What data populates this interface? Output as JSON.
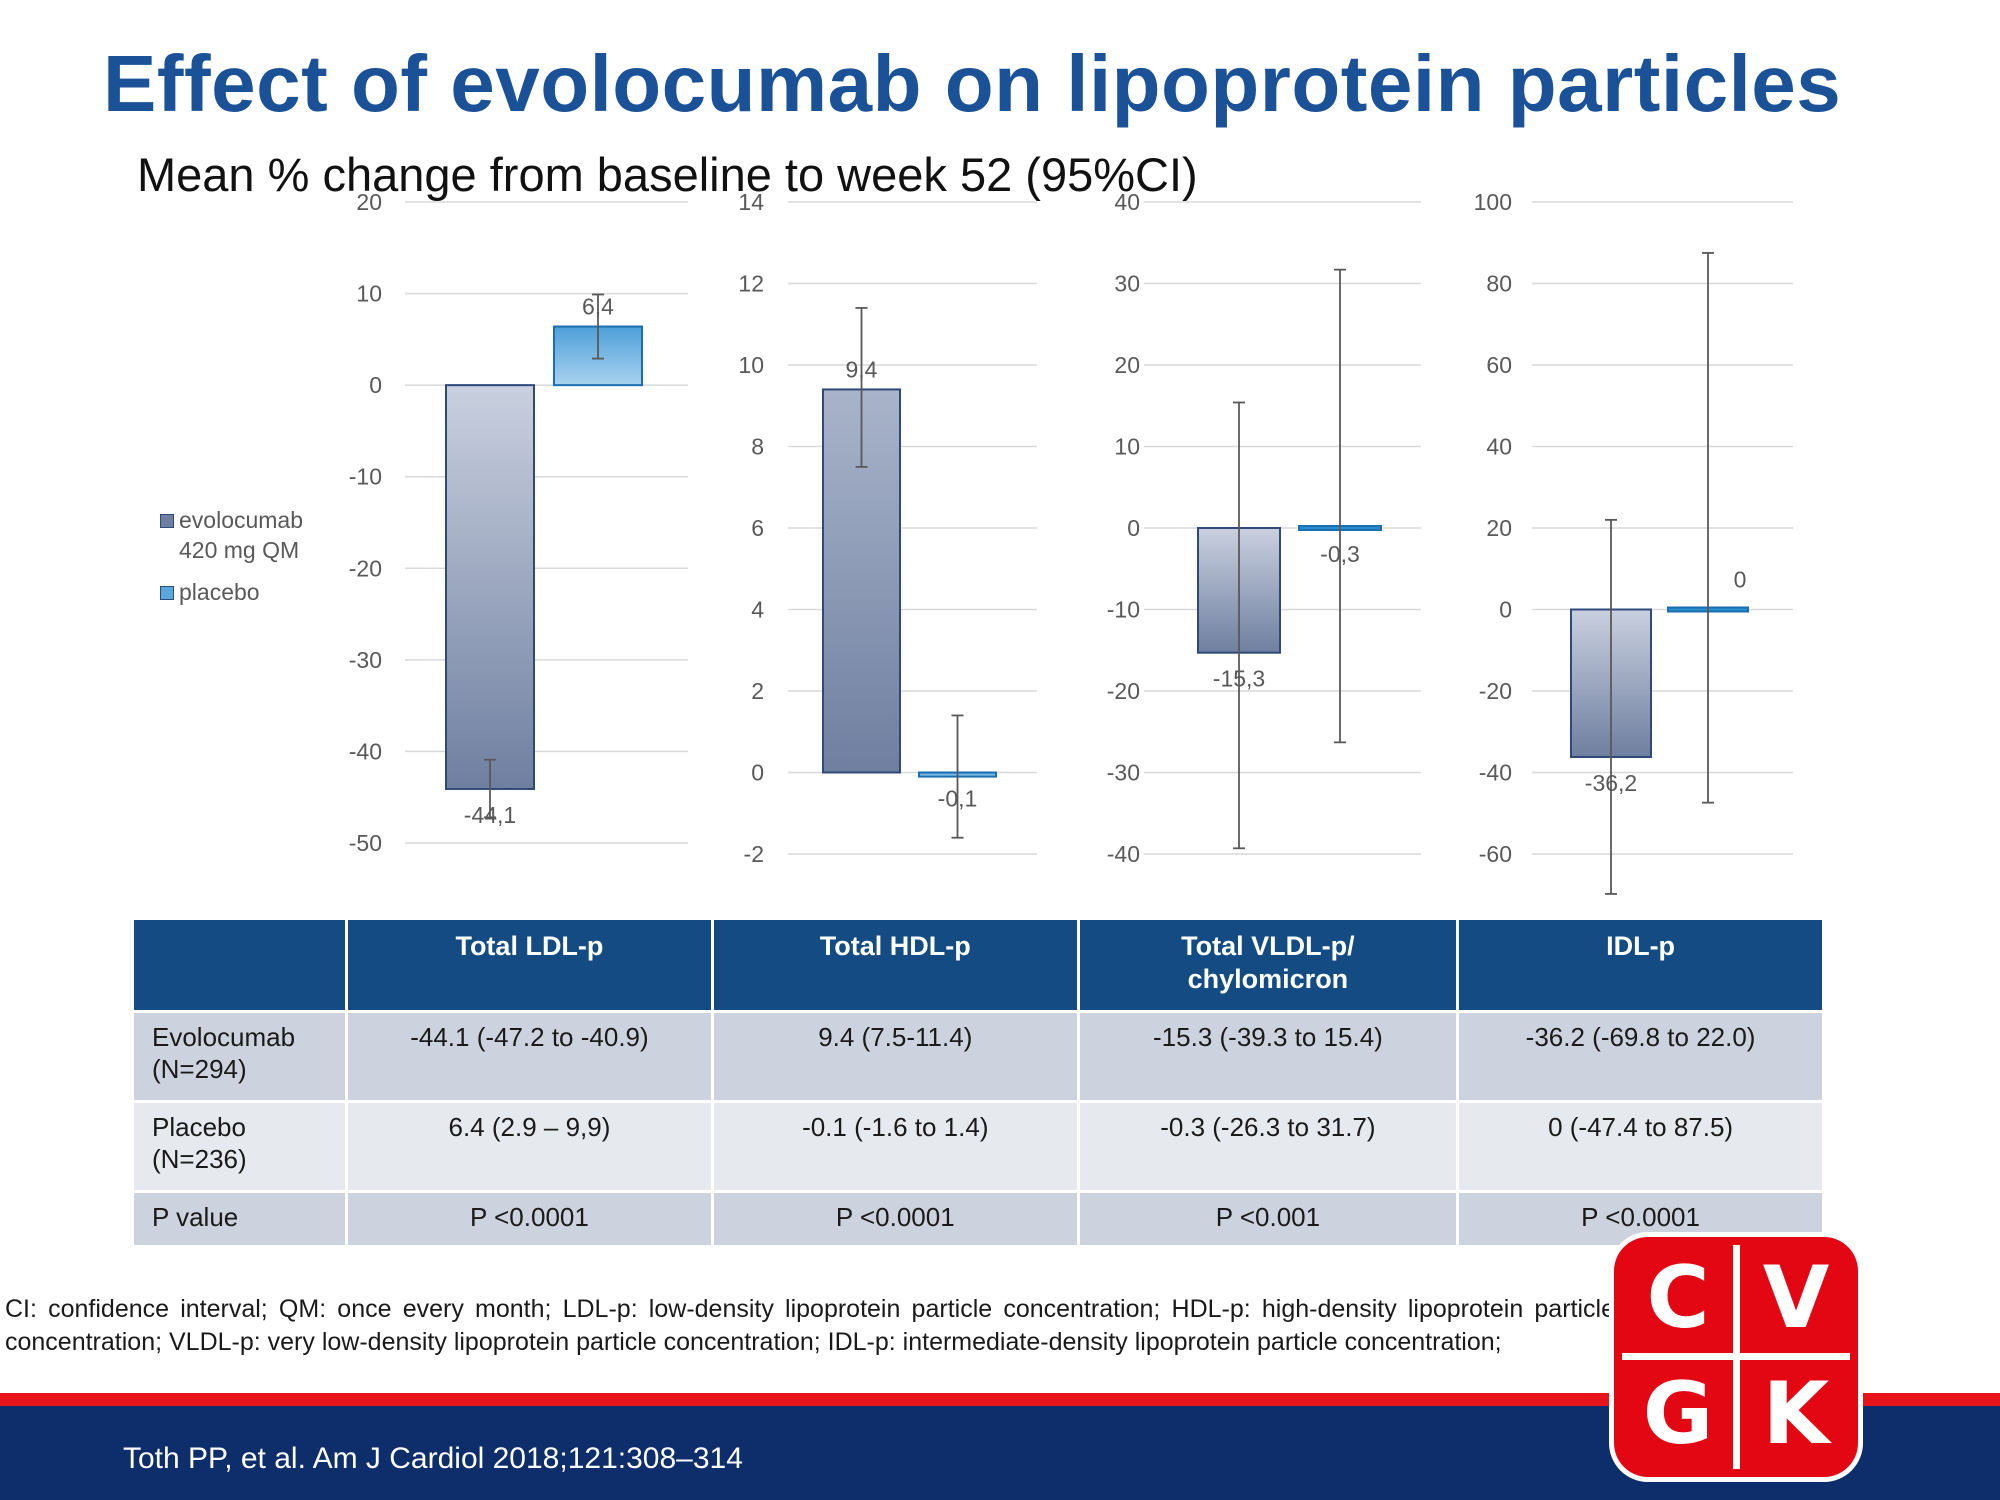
{
  "title": "Effect of evolocumab on lipoprotein particles",
  "subtitle": "Mean % change from baseline to week 52 (95%CI)",
  "colors": {
    "title": "#1b5196",
    "evolocumab": "#7a88a8",
    "placebo": "#5aa7dc",
    "table_header": "#134b82",
    "red_bar": "#e8141b",
    "footer": "#0d2d6b",
    "logo": "#e30613"
  },
  "legend": {
    "items": [
      {
        "label_line1": "evolocumab",
        "label_line2": "420 mg QM",
        "color": "#6f7fa0"
      },
      {
        "label_line1": "placebo",
        "label_line2": "",
        "color": "#5aa7dc"
      }
    ]
  },
  "chart_data": [
    {
      "type": "bar",
      "title": "",
      "yticks": [
        20,
        10,
        0,
        -10,
        -20,
        -30,
        -40,
        -50
      ],
      "ylim": [
        -50,
        20
      ],
      "series": [
        {
          "name": "evolocumab 420 mg QM",
          "value": -44.1,
          "label": "-44,1",
          "ci": [
            -47.2,
            -40.9
          ]
        },
        {
          "name": "placebo",
          "value": 6.4,
          "label": "6,4",
          "ci": [
            2.9,
            9.9
          ]
        }
      ]
    },
    {
      "type": "bar",
      "title": "",
      "yticks": [
        14,
        12,
        10,
        8,
        6,
        4,
        2,
        0,
        -2
      ],
      "ylim": [
        -2,
        14
      ],
      "series": [
        {
          "name": "evolocumab 420 mg QM",
          "value": 9.4,
          "label": "9,4",
          "ci": [
            7.5,
            11.4
          ]
        },
        {
          "name": "placebo",
          "value": -0.1,
          "label": "-0,1",
          "ci": [
            -1.6,
            1.4
          ]
        }
      ]
    },
    {
      "type": "bar",
      "title": "",
      "yticks": [
        40,
        30,
        20,
        10,
        0,
        -10,
        -20,
        -30,
        -40
      ],
      "ylim": [
        -40,
        40
      ],
      "series": [
        {
          "name": "evolocumab 420 mg QM",
          "value": -15.3,
          "label": "-15,3",
          "ci": [
            -39.3,
            15.4
          ]
        },
        {
          "name": "placebo",
          "value": -0.3,
          "label": "-0,3",
          "ci": [
            -26.3,
            31.7
          ]
        }
      ]
    },
    {
      "type": "bar",
      "title": "",
      "yticks": [
        100,
        80,
        60,
        40,
        20,
        0,
        -20,
        -40,
        -60
      ],
      "ylim": [
        -60,
        100
      ],
      "series": [
        {
          "name": "evolocumab 420 mg QM",
          "value": -36.2,
          "label": "-36,2",
          "ci": [
            -69.8,
            22.0
          ]
        },
        {
          "name": "placebo",
          "value": 0,
          "label": "0",
          "ci": [
            -47.4,
            87.5
          ]
        }
      ]
    }
  ],
  "table": {
    "headers": [
      "",
      "Total LDL-p",
      "Total HDL-p",
      "Total VLDL-p/ chylomicron",
      "IDL-p"
    ],
    "rows": [
      {
        "label": "Evolocumab (N=294)",
        "cells": [
          "-44.1 (-47.2 to -40.9)",
          "9.4 (7.5-11.4)",
          "-15.3  (-39.3 to 15.4)",
          "-36.2 (-69.8 to 22.0)"
        ]
      },
      {
        "label": "Placebo (N=236)",
        "cells": [
          "6.4 (2.9 – 9,9)",
          "-0.1 (-1.6 to 1.4)",
          "-0.3 (-26.3 to 31.7)",
          "0 (-47.4 to 87.5)"
        ]
      },
      {
        "label": "P value",
        "cells": [
          "P <0.0001",
          "P <0.0001",
          "P <0.001",
          "P <0.0001"
        ]
      }
    ]
  },
  "footnote": "CI: confidence interval; QM: once every month; LDL-p: low-density lipoprotein particle concentration; HDL-p: high-density lipoprotein particle concentration; VLDL-p: very low-density lipoprotein particle concentration; IDL-p: intermediate-density lipoprotein particle concentration;",
  "citation": "Toth PP, et al.  Am J Cardiol 2018;121:308–314",
  "logo": {
    "letters": [
      "C",
      "V",
      "G",
      "K"
    ]
  }
}
